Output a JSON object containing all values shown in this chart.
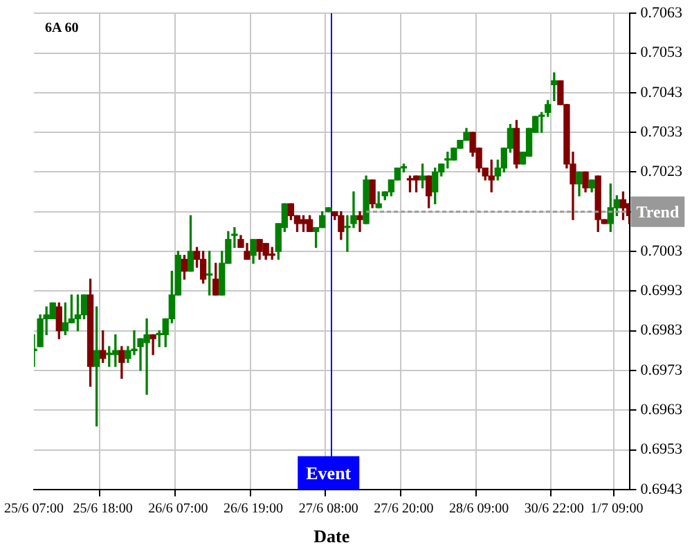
{
  "chart_data": {
    "type": "candlestick",
    "title": "6A 60",
    "xlabel": "Date",
    "categories": [
      "25/6 07:00",
      null,
      null,
      null,
      null,
      null,
      null,
      null,
      null,
      null,
      null,
      "25/6 18:00",
      null,
      null,
      null,
      null,
      null,
      null,
      null,
      null,
      null,
      null,
      null,
      "26/6 07:00",
      null,
      null,
      null,
      null,
      null,
      null,
      null,
      null,
      null,
      null,
      null,
      "26/6 19:00",
      null,
      null,
      null,
      null,
      null,
      null,
      null,
      null,
      null,
      null,
      null,
      "27/6 08:00",
      null,
      null,
      null,
      null,
      null,
      null,
      null,
      null,
      null,
      null,
      null,
      "27/6 20:00",
      null,
      null,
      null,
      null,
      null,
      null,
      null,
      null,
      null,
      null,
      null,
      "28/6 09:00",
      null,
      null,
      null,
      null,
      null,
      null,
      null,
      null,
      null,
      null,
      null,
      "30/6 22:00",
      null,
      null,
      null,
      null,
      null,
      null,
      null,
      null,
      null,
      "1/7 09:00",
      null,
      null
    ],
    "ohlc": [
      [
        0.6978,
        0.6982,
        0.6974,
        0.6978
      ],
      [
        0.6979,
        0.6987,
        0.6979,
        0.6986
      ],
      [
        0.6986,
        0.6989,
        0.6982,
        0.6987
      ],
      [
        0.6986,
        0.699,
        0.6986,
        0.699
      ],
      [
        0.6989,
        0.699,
        0.6981,
        0.6983
      ],
      [
        0.6983,
        0.699,
        0.6982,
        0.6985
      ],
      [
        0.6985,
        0.6992,
        0.6985,
        0.6986
      ],
      [
        0.6986,
        0.6992,
        0.6983,
        0.6987
      ],
      [
        0.6987,
        0.6992,
        0.6986,
        0.6992
      ],
      [
        0.6992,
        0.6996,
        0.6969,
        0.6974
      ],
      [
        0.6974,
        0.6989,
        0.6959,
        0.6978
      ],
      [
        0.6978,
        0.6983,
        0.6975,
        0.6976
      ],
      [
        0.6977,
        0.6979,
        0.6974,
        0.6977
      ],
      [
        0.6977,
        0.6982,
        0.6974,
        0.6978
      ],
      [
        0.6978,
        0.6979,
        0.6971,
        0.6975
      ],
      [
        0.6976,
        0.6979,
        0.6975,
        0.6978
      ],
      [
        0.6978,
        0.6983,
        0.6977,
        0.6978
      ],
      [
        0.6979,
        0.6981,
        0.6973,
        0.6981
      ],
      [
        0.698,
        0.6986,
        0.6967,
        0.6982
      ],
      [
        0.6982,
        0.6982,
        0.6977,
        0.6981
      ],
      [
        0.6982,
        0.6983,
        0.6979,
        0.6982
      ],
      [
        0.6982,
        0.6986,
        0.6979,
        0.6986
      ],
      [
        0.6986,
        0.6998,
        0.6985,
        0.6992
      ],
      [
        0.6992,
        0.7003,
        0.6992,
        0.7002
      ],
      [
        0.7001,
        0.7002,
        0.6996,
        0.6998
      ],
      [
        0.6998,
        0.7012,
        0.6998,
        0.7003
      ],
      [
        0.7003,
        0.7004,
        0.6999,
        0.7001
      ],
      [
        0.7001,
        0.7003,
        0.6995,
        0.6996
      ],
      [
        0.6997,
        0.7003,
        0.6992,
        0.6997
      ],
      [
        0.6996,
        0.7,
        0.6992,
        0.6992
      ],
      [
        0.6992,
        0.7003,
        0.6992,
        0.7
      ],
      [
        0.7,
        0.7008,
        0.7,
        0.7006
      ],
      [
        0.7007,
        0.7009,
        0.7004,
        0.7007
      ],
      [
        0.7006,
        0.7007,
        0.7004,
        0.7004
      ],
      [
        0.7003,
        0.7005,
        0.7001,
        0.7001
      ],
      [
        0.7002,
        0.7006,
        0.7,
        0.7006
      ],
      [
        0.7006,
        0.7006,
        0.7001,
        0.7003
      ],
      [
        0.7005,
        0.7005,
        0.7001,
        0.7002
      ],
      [
        0.7002,
        0.7004,
        0.7001,
        0.7002
      ],
      [
        0.7003,
        0.701,
        0.7001,
        0.701
      ],
      [
        0.7009,
        0.7015,
        0.7008,
        0.7015
      ],
      [
        0.7015,
        0.7015,
        0.7011,
        0.7012
      ],
      [
        0.7012,
        0.7012,
        0.7008,
        0.701
      ],
      [
        0.7011,
        0.7012,
        0.7008,
        0.701
      ],
      [
        0.7011,
        0.7012,
        0.7008,
        0.7008
      ],
      [
        0.7008,
        0.7009,
        0.7004,
        0.7009
      ],
      [
        0.7009,
        0.7013,
        0.7009,
        0.7012
      ],
      [
        0.7013,
        0.7014,
        0.7013,
        0.7014
      ],
      [
        0.7013,
        0.7013,
        0.7011,
        0.7012
      ],
      [
        0.7012,
        0.7013,
        0.7006,
        0.7008
      ],
      [
        0.7009,
        0.7012,
        0.7003,
        0.7009
      ],
      [
        0.701,
        0.7018,
        0.7009,
        0.7012
      ],
      [
        0.7012,
        0.7013,
        0.7008,
        0.7011
      ],
      [
        0.701,
        0.7022,
        0.701,
        0.7021
      ],
      [
        0.7021,
        0.7021,
        0.7014,
        0.7015
      ],
      [
        0.7014,
        0.7018,
        0.7014,
        0.7015
      ],
      [
        0.7017,
        0.7018,
        0.7016,
        0.7018
      ],
      [
        0.7018,
        0.7021,
        0.7017,
        0.7021
      ],
      [
        0.7021,
        0.7024,
        0.7021,
        0.7024
      ],
      [
        0.7024,
        0.7025,
        0.7023,
        0.7024
      ],
      [
        0.7021,
        0.7022,
        0.7018,
        0.7021
      ],
      [
        0.7022,
        0.7022,
        0.7018,
        0.7021
      ],
      [
        0.7021,
        0.7025,
        0.7019,
        0.7022
      ],
      [
        0.7022,
        0.7022,
        0.7014,
        0.7017
      ],
      [
        0.7018,
        0.7024,
        0.7015,
        0.7023
      ],
      [
        0.7023,
        0.7025,
        0.7022,
        0.7025
      ],
      [
        0.7026,
        0.7028,
        0.7024,
        0.7026
      ],
      [
        0.7026,
        0.7029,
        0.7026,
        0.7029
      ],
      [
        0.7029,
        0.7031,
        0.7029,
        0.7031
      ],
      [
        0.7031,
        0.7034,
        0.7031,
        0.7033
      ],
      [
        0.7033,
        0.7033,
        0.7027,
        0.7028
      ],
      [
        0.7029,
        0.7029,
        0.7023,
        0.7024
      ],
      [
        0.7024,
        0.7024,
        0.7021,
        0.7022
      ],
      [
        0.7022,
        0.7026,
        0.7018,
        0.7021
      ],
      [
        0.7022,
        0.7026,
        0.7021,
        0.7024
      ],
      [
        0.7024,
        0.7029,
        0.7023,
        0.7029
      ],
      [
        0.7029,
        0.7035,
        0.7028,
        0.7034
      ],
      [
        0.7034,
        0.7036,
        0.7024,
        0.7025
      ],
      [
        0.7025,
        0.7028,
        0.7025,
        0.7028
      ],
      [
        0.7027,
        0.7034,
        0.7027,
        0.7034
      ],
      [
        0.7033,
        0.7037,
        0.7033,
        0.7037
      ],
      [
        0.7037,
        0.7038,
        0.7033,
        0.7037
      ],
      [
        0.7038,
        0.7041,
        0.7037,
        0.704
      ],
      [
        0.7045,
        0.7048,
        0.7041,
        0.7046
      ],
      [
        0.7046,
        0.7046,
        0.704,
        0.704
      ],
      [
        0.704,
        0.704,
        0.7024,
        0.7025
      ],
      [
        0.7025,
        0.7028,
        0.7011,
        0.702
      ],
      [
        0.702,
        0.7023,
        0.7017,
        0.7023
      ],
      [
        0.7023,
        0.7023,
        0.7018,
        0.7019
      ],
      [
        0.7019,
        0.7021,
        0.7018,
        0.7021
      ],
      [
        0.7022,
        0.7022,
        0.7008,
        0.7011
      ],
      [
        0.7011,
        0.7011,
        0.701,
        0.701
      ],
      [
        0.701,
        0.702,
        0.7008,
        0.7014
      ],
      [
        0.7014,
        0.7017,
        0.7012,
        0.7016
      ],
      [
        0.7016,
        0.7018,
        0.7011,
        0.7014
      ],
      [
        0.7015,
        0.7015,
        0.701,
        0.7012
      ]
    ],
    "colors": [
      "#008000",
      "#008000",
      "#008000",
      "#008000",
      "#800000",
      "#008000",
      "#008000",
      "#008000",
      "#008000",
      "#800000",
      "#008000",
      "#800000",
      "#008000",
      "#008000",
      "#800000",
      "#008000",
      "#008000",
      "#008000",
      "#008000",
      "#800000",
      "#008000",
      "#008000",
      "#008000",
      "#008000",
      "#800000",
      "#008000",
      "#800000",
      "#800000",
      "#008000",
      "#800000",
      "#008000",
      "#008000",
      "#008000",
      "#800000",
      "#800000",
      "#008000",
      "#800000",
      "#800000",
      "#800000",
      "#008000",
      "#008000",
      "#800000",
      "#800000",
      "#800000",
      "#800000",
      "#008000",
      "#008000",
      "#008000",
      "#800000",
      "#800000",
      "#008000",
      "#008000",
      "#800000",
      "#008000",
      "#800000",
      "#008000",
      "#008000",
      "#008000",
      "#008000",
      "#008000",
      "#800000",
      "#800000",
      "#008000",
      "#800000",
      "#008000",
      "#008000",
      "#008000",
      "#008000",
      "#008000",
      "#008000",
      "#800000",
      "#800000",
      "#800000",
      "#800000",
      "#008000",
      "#008000",
      "#008000",
      "#800000",
      "#008000",
      "#008000",
      "#008000",
      "#008000",
      "#008000",
      "#008000",
      "#800000",
      "#800000",
      "#800000",
      "#008000",
      "#800000",
      "#008000",
      "#800000",
      "#800000",
      "#008000",
      "#008000",
      "#800000",
      "#800000"
    ],
    "series": [
      {
        "type": "line",
        "name": "Trend",
        "color": "#999999",
        "line_style": "dashed",
        "values": [
          null,
          null,
          null,
          null,
          null,
          null,
          null,
          null,
          null,
          null,
          null,
          null,
          null,
          null,
          null,
          null,
          null,
          null,
          null,
          null,
          null,
          null,
          null,
          null,
          null,
          null,
          null,
          null,
          null,
          null,
          null,
          null,
          null,
          null,
          null,
          null,
          null,
          null,
          null,
          null,
          null,
          null,
          null,
          null,
          null,
          null,
          null,
          null,
          null,
          null,
          null,
          null,
          null,
          0.7013,
          0.7013,
          0.7013,
          0.7013,
          0.7013,
          0.7013,
          0.7013,
          0.7013,
          0.7013,
          0.7013,
          0.7013,
          0.7013,
          0.7013,
          0.7013,
          0.7013,
          0.7013,
          0.7013,
          0.7013,
          0.7013,
          0.7013,
          0.7013,
          0.7013,
          0.7013,
          0.7013,
          0.7013,
          0.7013,
          0.7013,
          0.7013,
          0.7013,
          0.7013,
          0.7013,
          0.7013,
          0.7013,
          0.7013,
          0.7013,
          0.7013,
          0.7013,
          0.7013,
          0.7013,
          0.7013,
          0.7013,
          0.7013,
          0.7013
        ]
      }
    ],
    "ref_lines": [
      {
        "axis": "x",
        "value": "27/6 08:00",
        "label": "Event",
        "color": "#0000ff"
      }
    ],
    "ylim": [
      0.6943,
      0.7063
    ],
    "yticks": [
      0.6943,
      0.6953,
      0.6963,
      0.6973,
      0.6983,
      0.6993,
      0.7003,
      {
        "value": 0.7013,
        "label": null
      },
      0.7023,
      0.7033,
      0.7043,
      0.7053,
      0.7063
    ],
    "grid": true
  }
}
